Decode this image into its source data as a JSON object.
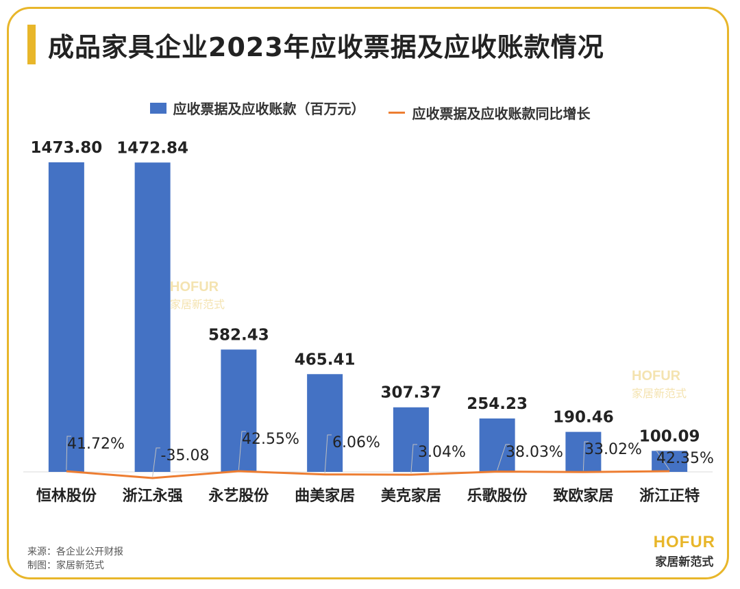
{
  "title": "成品家具企业2023年应收票据及应收账款情况",
  "legend": {
    "bar": "应收票据及应收账款（百万元）",
    "line": "应收票据及应收账款同比增长"
  },
  "source": {
    "line1": "来源：各企业公开财报",
    "line2": "制图：家居新范式"
  },
  "brand": {
    "en": "HOFUR",
    "cn": "家居新范式"
  },
  "colors": {
    "bar": "#4472c4",
    "line": "#ed7d31",
    "accent": "#e8b62a"
  },
  "chart_data": {
    "type": "bar",
    "title": "成品家具企业2023年应收票据及应收账款情况",
    "categories": [
      "恒林股份",
      "浙江永强",
      "永艺股份",
      "曲美家居",
      "美克家居",
      "乐歌股份",
      "致欧家居",
      "浙江正特"
    ],
    "series": [
      {
        "name": "应收票据及应收账款（百万元）",
        "type": "bar",
        "values": [
          1473.8,
          1472.84,
          582.43,
          465.41,
          307.37,
          254.23,
          190.46,
          100.09
        ],
        "labels": [
          "1473.80",
          "1472.84",
          "582.43",
          "465.41",
          "307.37",
          "254.23",
          "190.46",
          "100.09"
        ]
      },
      {
        "name": "应收票据及应收账款同比增长",
        "type": "line",
        "values": [
          41.72,
          -35.08,
          42.55,
          6.06,
          3.04,
          38.03,
          33.02,
          42.35
        ],
        "labels": [
          "41.72%",
          "-35.08",
          "42.55%",
          "6.06%",
          "3.04%",
          "38.03%",
          "33.02%",
          "42.35%"
        ]
      }
    ],
    "ylim": [
      0,
      1473.8
    ],
    "legend_position": "top-center",
    "grid": false
  }
}
